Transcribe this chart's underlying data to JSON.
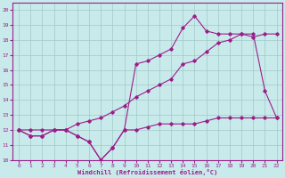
{
  "xlabel": "Windchill (Refroidissement éolien,°C)",
  "bg_color": "#c8eaea",
  "grid_color": "#a0c8c8",
  "line_color": "#9b1e8a",
  "xlim": [
    -0.5,
    22.5
  ],
  "ylim": [
    10,
    20.5
  ],
  "xticks": [
    0,
    1,
    2,
    3,
    4,
    5,
    6,
    7,
    8,
    9,
    10,
    11,
    12,
    13,
    14,
    15,
    16,
    17,
    18,
    19,
    20,
    21,
    22
  ],
  "yticks": [
    10,
    11,
    12,
    13,
    14,
    15,
    16,
    17,
    18,
    19,
    20
  ],
  "series1_x": [
    0,
    1,
    2,
    3,
    4,
    5,
    6,
    7,
    8,
    9,
    10,
    11,
    12,
    13,
    14,
    15,
    16,
    17,
    18,
    19,
    20,
    21,
    22
  ],
  "series1_y": [
    12.0,
    11.6,
    11.6,
    12.0,
    12.0,
    11.6,
    11.2,
    10.0,
    10.8,
    12.0,
    12.0,
    12.2,
    12.4,
    12.4,
    12.4,
    12.4,
    12.6,
    12.8,
    12.8,
    12.8,
    12.8,
    12.8,
    12.8
  ],
  "series2_x": [
    0,
    1,
    2,
    3,
    4,
    5,
    6,
    7,
    8,
    9,
    10,
    11,
    12,
    13,
    14,
    15,
    16,
    17,
    18,
    19,
    20,
    21,
    22
  ],
  "series2_y": [
    12.0,
    11.6,
    11.6,
    12.0,
    12.0,
    11.6,
    11.2,
    10.0,
    10.8,
    12.0,
    16.4,
    16.6,
    17.0,
    17.4,
    18.8,
    19.6,
    18.6,
    18.4,
    18.4,
    18.4,
    18.4,
    14.6,
    12.8
  ],
  "series3_x": [
    0,
    1,
    2,
    3,
    4,
    5,
    6,
    7,
    8,
    9,
    10,
    11,
    12,
    13,
    14,
    15,
    16,
    17,
    18,
    19,
    20,
    21,
    22
  ],
  "series3_y": [
    12.0,
    12.0,
    12.0,
    12.0,
    12.0,
    12.4,
    12.6,
    12.8,
    13.2,
    13.6,
    14.2,
    14.6,
    15.0,
    15.4,
    16.4,
    16.6,
    17.2,
    17.8,
    18.0,
    18.4,
    18.2,
    18.4,
    18.4
  ]
}
